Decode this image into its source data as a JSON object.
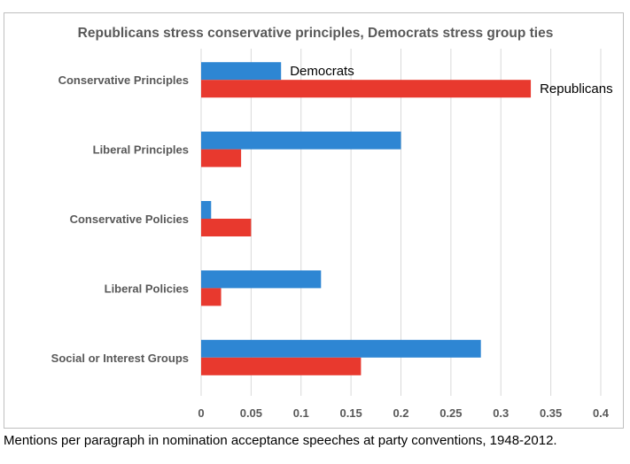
{
  "chart_data": {
    "type": "bar",
    "orientation": "horizontal",
    "title": "Republicans stress conservative principles, Democrats stress group ties",
    "categories": [
      "Conservative Principles",
      "Liberal Principles",
      "Conservative Policies",
      "Liberal Policies",
      "Social or Interest Groups"
    ],
    "series": [
      {
        "name": "Democrats",
        "color": "#2e86d3",
        "values": [
          0.08,
          0.2,
          0.01,
          0.12,
          0.28
        ]
      },
      {
        "name": "Republicans",
        "color": "#e8392e",
        "values": [
          0.33,
          0.04,
          0.05,
          0.02,
          0.16
        ]
      }
    ],
    "xlim": [
      0,
      0.4
    ],
    "xticks": [
      0,
      0.05,
      0.1,
      0.15,
      0.2,
      0.25,
      0.3,
      0.35,
      0.4
    ],
    "xtick_labels": [
      "0",
      "0.05",
      "0.1",
      "0.15",
      "0.2",
      "0.25",
      "0.3",
      "0.35",
      "0.4"
    ],
    "gridlines": "vertical",
    "legend": "inline labels next to first category bars"
  },
  "caption": "Mentions per paragraph in nomination acceptance speeches at party conventions, 1948-2012."
}
